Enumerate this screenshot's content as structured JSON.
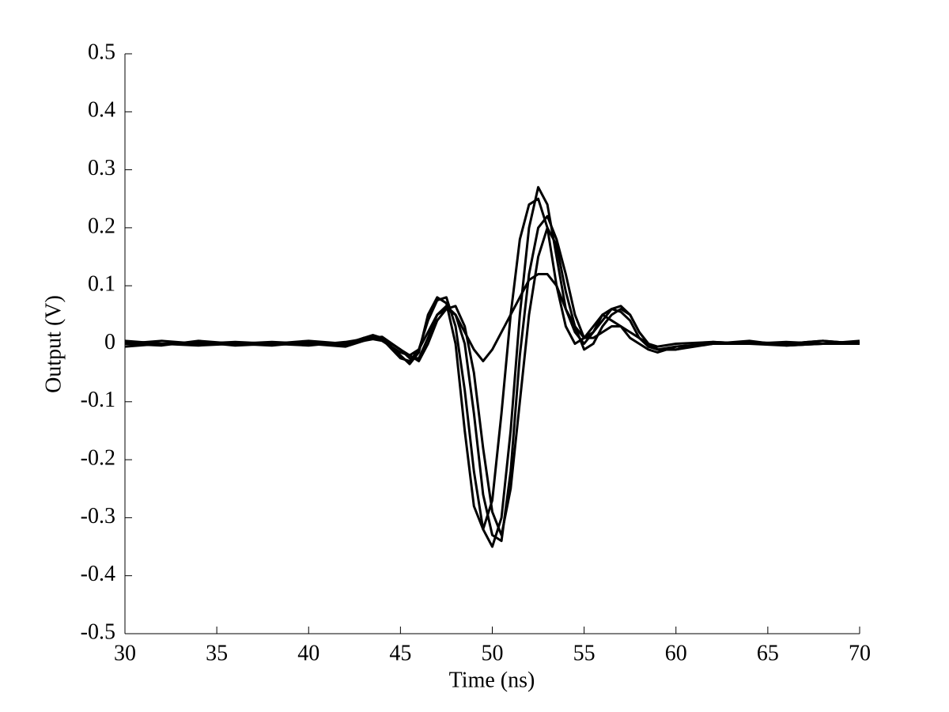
{
  "chart_data": {
    "type": "line",
    "x_label": "Time (ns)",
    "y_label": "Output (V)",
    "x": [
      30,
      32,
      34,
      36,
      38,
      40,
      42,
      43,
      43.5,
      44,
      45,
      45.5,
      46,
      46.5,
      47,
      47.5,
      48,
      48.5,
      49,
      49.5,
      50,
      50.5,
      51,
      51.5,
      52,
      52.5,
      53,
      53.5,
      54,
      54.5,
      55,
      55.5,
      56,
      56.5,
      57,
      57.5,
      58,
      58.5,
      59,
      60,
      62,
      64,
      66,
      68,
      70
    ],
    "series": [
      {
        "color": "#000000",
        "values": [
          0,
          0.005,
          0,
          0,
          0.003,
          0,
          -0.003,
          0.01,
          0.012,
          0.008,
          -0.025,
          -0.03,
          -0.01,
          0.04,
          0.075,
          0.08,
          0.03,
          -0.08,
          -0.22,
          -0.32,
          -0.35,
          -0.3,
          -0.15,
          0.05,
          0.2,
          0.27,
          0.24,
          0.15,
          0.06,
          0.02,
          0,
          0.02,
          0.05,
          0.06,
          0.055,
          0.04,
          0.01,
          -0.005,
          -0.01,
          -0.01,
          0,
          0.003,
          0,
          0.005,
          0
        ]
      },
      {
        "color": "#000000",
        "values": [
          0.003,
          0,
          -0.003,
          0,
          0,
          0.005,
          0,
          0.005,
          0.01,
          0.01,
          -0.01,
          -0.02,
          -0.03,
          0,
          0.04,
          0.06,
          0.065,
          0.03,
          -0.05,
          -0.18,
          -0.29,
          -0.33,
          -0.25,
          -0.1,
          0.05,
          0.15,
          0.2,
          0.17,
          0.09,
          0.03,
          -0.01,
          0,
          0.03,
          0.05,
          0.06,
          0.05,
          0.02,
          0,
          -0.01,
          -0.005,
          0,
          0,
          0.003,
          0,
          0.003
        ]
      },
      {
        "color": "#000000",
        "values": [
          -0.005,
          0,
          0.003,
          -0.003,
          0,
          0,
          -0.005,
          0.005,
          0.008,
          0.005,
          -0.015,
          -0.02,
          -0.01,
          0.02,
          0.05,
          0.06,
          0.05,
          0.02,
          -0.01,
          -0.03,
          -0.01,
          0.02,
          0.05,
          0.08,
          0.11,
          0.12,
          0.12,
          0.1,
          0.06,
          0.03,
          0.01,
          0.01,
          0.02,
          0.03,
          0.03,
          0.02,
          0.01,
          0,
          -0.005,
          0,
          0.003,
          0,
          -0.003,
          0,
          0
        ]
      },
      {
        "color": "#000000",
        "values": [
          0,
          -0.003,
          0.005,
          0,
          -0.003,
          0.003,
          0,
          0.01,
          0.015,
          0.01,
          -0.02,
          -0.035,
          -0.015,
          0.05,
          0.08,
          0.07,
          0,
          -0.15,
          -0.28,
          -0.32,
          -0.27,
          -0.12,
          0.05,
          0.18,
          0.24,
          0.25,
          0.2,
          0.1,
          0.03,
          0,
          0.01,
          0.03,
          0.05,
          0.04,
          0.03,
          0.01,
          0,
          -0.01,
          -0.015,
          -0.005,
          0,
          0.005,
          -0.003,
          0,
          0.005
        ]
      },
      {
        "color": "#000000",
        "values": [
          0.005,
          0,
          0,
          0.003,
          0,
          -0.003,
          0.003,
          0.008,
          0.01,
          0.012,
          -0.01,
          -0.025,
          -0.025,
          0.01,
          0.05,
          0.065,
          0.05,
          0,
          -0.12,
          -0.26,
          -0.33,
          -0.34,
          -0.22,
          -0.02,
          0.12,
          0.2,
          0.22,
          0.18,
          0.12,
          0.05,
          0.01,
          0.02,
          0.04,
          0.06,
          0.065,
          0.05,
          0.02,
          0,
          -0.01,
          -0.01,
          0.003,
          0,
          0,
          0.005,
          0
        ]
      }
    ],
    "xlim": [
      30,
      70
    ],
    "xticks": [
      30,
      35,
      40,
      45,
      50,
      55,
      60,
      65,
      70
    ],
    "ylim": [
      -0.5,
      0.5
    ],
    "yticks": [
      0.5,
      0.4,
      0.3,
      0.2,
      0.1,
      0,
      -0.1,
      -0.2,
      -0.3,
      -0.4,
      -0.5
    ],
    "grid": false
  }
}
